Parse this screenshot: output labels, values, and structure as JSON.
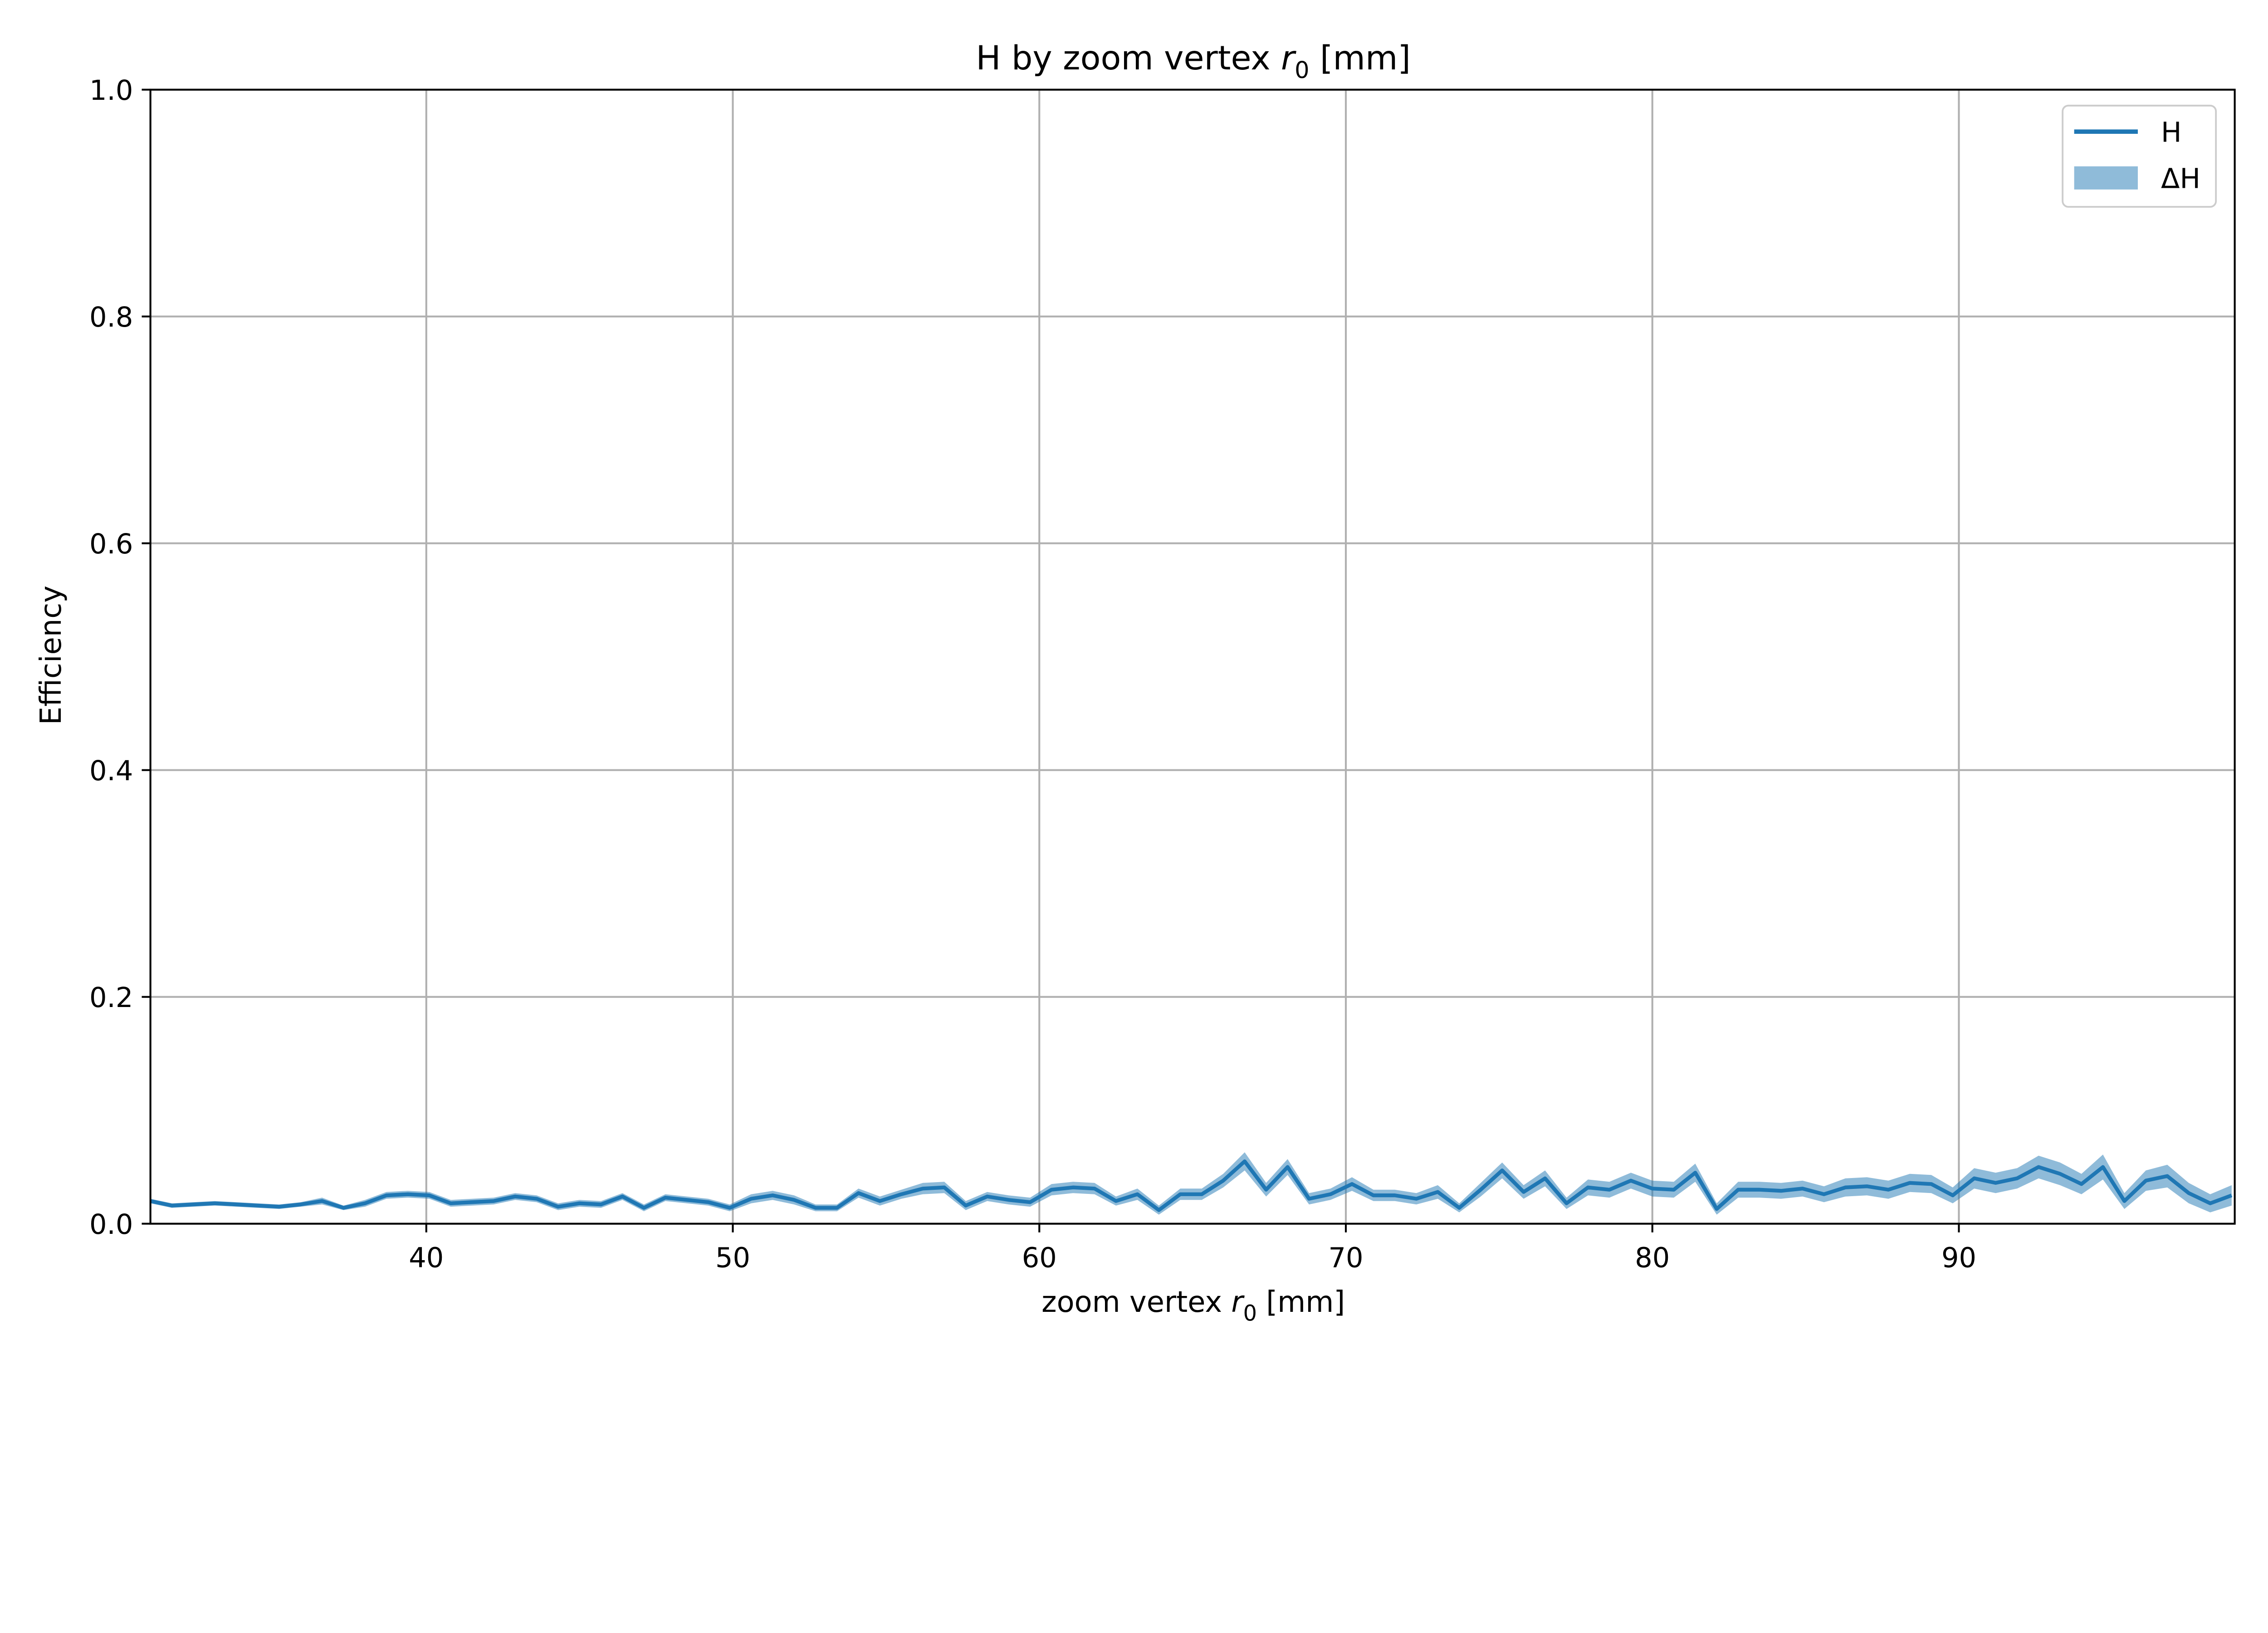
{
  "colors": {
    "line": "#1f77b4",
    "band": "#1f77b4",
    "grid": "#b0b0b0",
    "axis": "#000000"
  },
  "chart_data": {
    "type": "line",
    "title": {
      "main": "H by zoom vertex ",
      "var": "r",
      "sub": "0",
      "unit": " [mm]"
    },
    "xlabel": {
      "main": "zoom vertex ",
      "var": "r",
      "sub": "0",
      "unit": " [mm]"
    },
    "ylabel": "Efficiency",
    "xlim": [
      31,
      99
    ],
    "ylim": [
      0,
      1.0
    ],
    "xticks": [
      40,
      50,
      60,
      70,
      80,
      90
    ],
    "xtick_labels": [
      "40",
      "50",
      "60",
      "70",
      "80",
      "90"
    ],
    "yticks": [
      0.0,
      0.2,
      0.4,
      0.6,
      0.8,
      1.0
    ],
    "ytick_labels": [
      "0.0",
      "0.2",
      "0.4",
      "0.6",
      "0.8",
      "1.0"
    ],
    "grid": true,
    "legend_position": "top-right",
    "legend": [
      "H",
      "ΔH"
    ],
    "series": [
      {
        "name": "H",
        "band_name": "ΔH",
        "x": [
          31,
          31.7,
          32.4,
          33.1,
          33.8,
          34.5,
          35.2,
          35.9,
          36.6,
          37.3,
          38.0,
          38.7,
          39.4,
          40.1,
          40.8,
          41.5,
          42.2,
          42.9,
          43.6,
          44.3,
          45.0,
          45.7,
          46.4,
          47.1,
          47.8,
          48.5,
          49.2,
          49.9,
          50.6,
          51.3,
          52.0,
          52.7,
          53.4,
          54.1,
          54.8,
          55.5,
          56.2,
          56.9,
          57.6,
          58.3,
          59.0,
          59.7,
          60.4,
          61.1,
          61.8,
          62.5,
          63.2,
          63.9,
          64.6,
          65.3,
          66.0,
          66.7,
          67.4,
          68.1,
          68.8,
          69.5,
          70.2,
          70.9,
          71.6,
          72.3,
          73.0,
          73.7,
          74.4,
          75.1,
          75.8,
          76.5,
          77.2,
          77.9,
          78.6,
          79.3,
          80.0,
          80.7,
          81.4,
          82.1,
          82.8,
          83.5,
          84.2,
          84.9,
          85.6,
          86.3,
          87.0,
          87.7,
          88.4,
          89.1,
          89.8,
          90.5,
          91.2,
          91.9,
          92.6,
          93.3,
          94.0,
          94.7,
          95.4,
          96.1,
          96.8,
          97.5,
          98.2,
          98.9
        ],
        "values": [
          0.02,
          0.016,
          0.017,
          0.018,
          0.017,
          0.016,
          0.015,
          0.017,
          0.02,
          0.014,
          0.018,
          0.025,
          0.026,
          0.025,
          0.018,
          0.019,
          0.02,
          0.024,
          0.022,
          0.015,
          0.018,
          0.017,
          0.024,
          0.014,
          0.023,
          0.021,
          0.019,
          0.014,
          0.022,
          0.025,
          0.021,
          0.014,
          0.014,
          0.027,
          0.02,
          0.026,
          0.031,
          0.032,
          0.016,
          0.024,
          0.021,
          0.019,
          0.03,
          0.032,
          0.031,
          0.02,
          0.026,
          0.012,
          0.026,
          0.026,
          0.038,
          0.055,
          0.03,
          0.05,
          0.022,
          0.026,
          0.035,
          0.025,
          0.025,
          0.022,
          0.028,
          0.014,
          0.03,
          0.047,
          0.028,
          0.04,
          0.018,
          0.032,
          0.03,
          0.038,
          0.031,
          0.03,
          0.045,
          0.013,
          0.03,
          0.03,
          0.029,
          0.031,
          0.026,
          0.032,
          0.033,
          0.03,
          0.036,
          0.035,
          0.025,
          0.04,
          0.036,
          0.04,
          0.05,
          0.044,
          0.035,
          0.05,
          0.02,
          0.038,
          0.042,
          0.027,
          0.018,
          0.025
        ],
        "errors": [
          0.002,
          0.002,
          0.002,
          0.002,
          0.002,
          0.002,
          0.002,
          0.002,
          0.003,
          0.002,
          0.003,
          0.003,
          0.003,
          0.003,
          0.003,
          0.003,
          0.003,
          0.003,
          0.003,
          0.003,
          0.003,
          0.003,
          0.003,
          0.003,
          0.003,
          0.003,
          0.003,
          0.003,
          0.004,
          0.004,
          0.004,
          0.003,
          0.003,
          0.004,
          0.004,
          0.004,
          0.005,
          0.005,
          0.004,
          0.004,
          0.004,
          0.004,
          0.005,
          0.005,
          0.005,
          0.004,
          0.005,
          0.004,
          0.005,
          0.005,
          0.006,
          0.008,
          0.006,
          0.007,
          0.005,
          0.005,
          0.006,
          0.005,
          0.005,
          0.005,
          0.006,
          0.004,
          0.006,
          0.007,
          0.006,
          0.007,
          0.005,
          0.007,
          0.007,
          0.007,
          0.007,
          0.007,
          0.008,
          0.005,
          0.007,
          0.007,
          0.007,
          0.007,
          0.007,
          0.008,
          0.008,
          0.008,
          0.008,
          0.008,
          0.007,
          0.009,
          0.009,
          0.009,
          0.01,
          0.01,
          0.009,
          0.011,
          0.007,
          0.009,
          0.01,
          0.009,
          0.008,
          0.009
        ]
      }
    ]
  }
}
